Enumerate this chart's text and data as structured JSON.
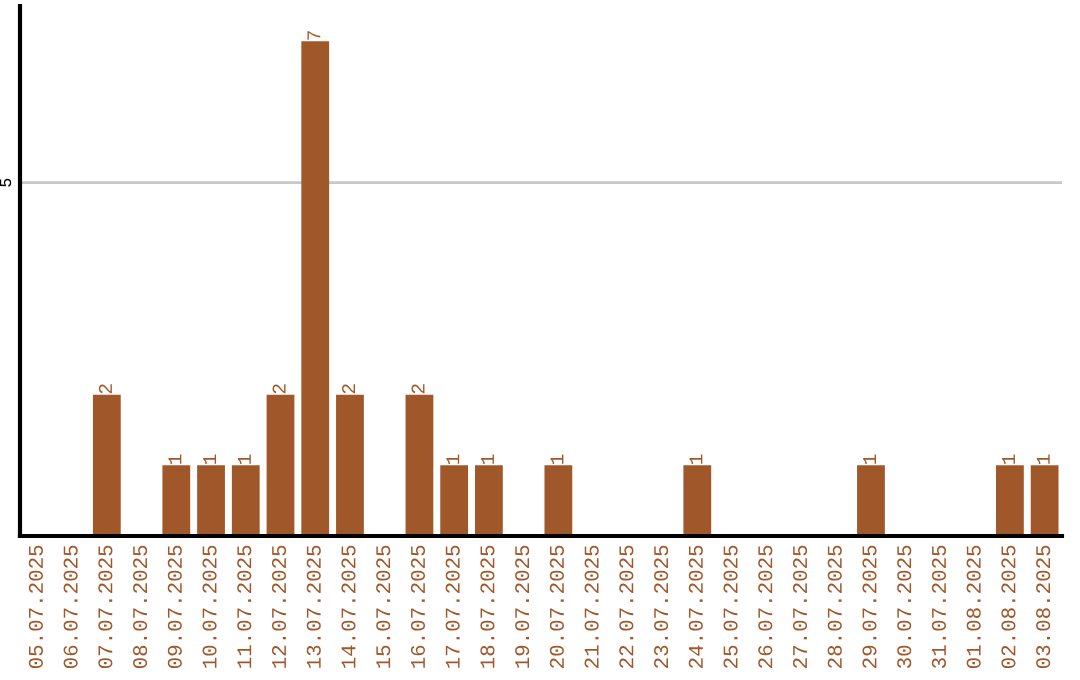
{
  "chart_data": {
    "type": "bar",
    "categories": [
      "05.07.2025",
      "06.07.2025",
      "07.07.2025",
      "08.07.2025",
      "09.07.2025",
      "10.07.2025",
      "11.07.2025",
      "12.07.2025",
      "13.07.2025",
      "14.07.2025",
      "15.07.2025",
      "16.07.2025",
      "17.07.2025",
      "18.07.2025",
      "19.07.2025",
      "20.07.2025",
      "21.07.2025",
      "22.07.2025",
      "23.07.2025",
      "24.07.2025",
      "25.07.2025",
      "26.07.2025",
      "27.07.2025",
      "28.07.2025",
      "29.07.2025",
      "30.07.2025",
      "31.07.2025",
      "01.08.2025",
      "02.08.2025",
      "03.08.2025"
    ],
    "values": [
      0,
      0,
      2,
      0,
      1,
      1,
      1,
      2,
      7,
      2,
      0,
      2,
      1,
      1,
      0,
      1,
      0,
      0,
      0,
      1,
      0,
      0,
      0,
      0,
      1,
      0,
      0,
      0,
      1,
      1
    ],
    "value_labels": [
      null,
      null,
      "2",
      null,
      "1",
      "1",
      "1",
      "2",
      "7",
      "2",
      null,
      "2",
      "1",
      "1",
      null,
      "1",
      null,
      null,
      null,
      "1",
      null,
      null,
      null,
      null,
      "1",
      null,
      null,
      null,
      "1",
      "1"
    ],
    "color": "#a0572a",
    "ylim": [
      0,
      7.5
    ],
    "yticks": [
      5
    ],
    "grid": "y"
  }
}
